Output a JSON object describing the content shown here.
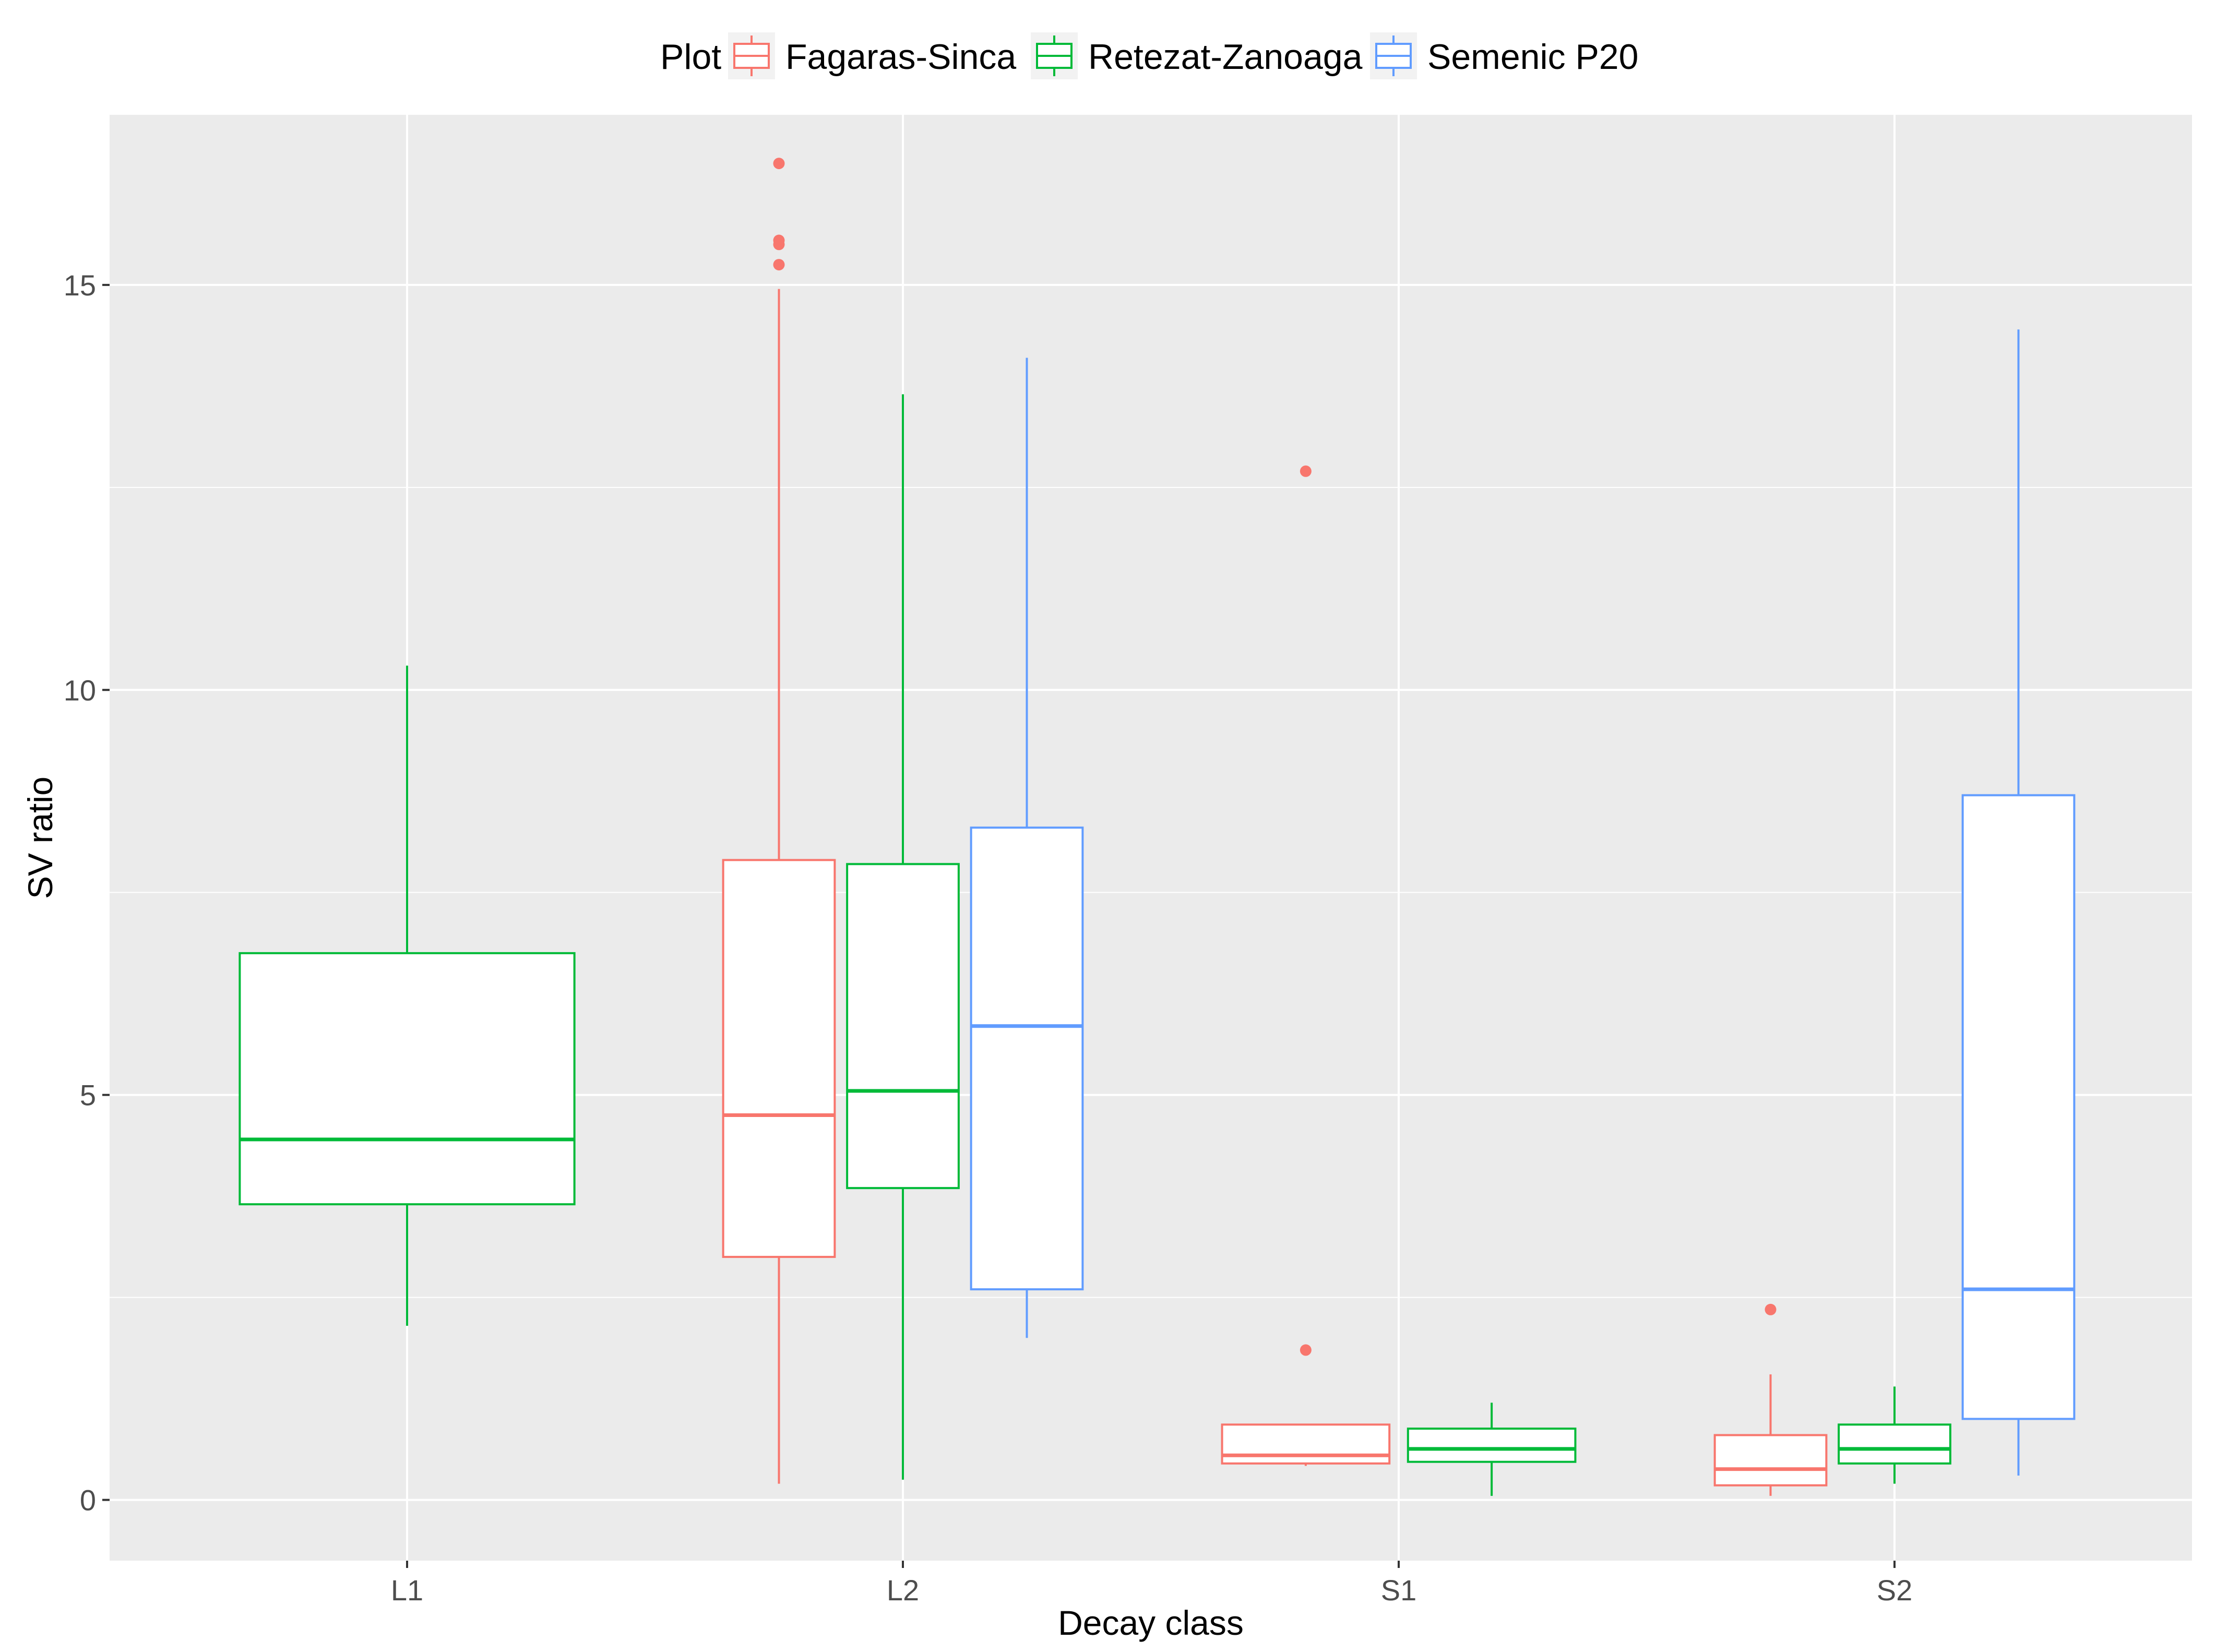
{
  "chart_data": {
    "type": "boxplot",
    "xlabel": "Decay class",
    "ylabel": "SV ratio",
    "categories": [
      "L1",
      "L2",
      "S1",
      "S2"
    ],
    "ylim": [
      -0.75,
      17.1
    ],
    "yticks": [
      0,
      5,
      10,
      15
    ],
    "grid": true,
    "legend": {
      "title": "Plot",
      "position": "top",
      "entries": [
        "Fagaras-Sinca",
        "Retezat-Zanoaga",
        "Semenic P20"
      ]
    },
    "series": [
      {
        "name": "Fagaras-Sinca",
        "color": "#F8766D",
        "boxes": [
          {
            "category": "L2",
            "min": 0.2,
            "q1": 3.0,
            "median": 4.75,
            "q3": 7.9,
            "max": 14.95,
            "outliers": [
              16.5,
              15.5,
              15.55,
              15.25
            ]
          },
          {
            "category": "S1",
            "min": 0.42,
            "q1": 0.45,
            "median": 0.55,
            "q3": 0.93,
            "max": 0.93,
            "outliers": [
              12.7,
              1.85
            ]
          },
          {
            "category": "S2",
            "min": 0.05,
            "q1": 0.18,
            "median": 0.38,
            "q3": 0.8,
            "max": 1.55,
            "outliers": [
              2.35
            ]
          }
        ]
      },
      {
        "name": "Retezat-Zanoaga",
        "color": "#00BA38",
        "boxes": [
          {
            "category": "L1",
            "min": 2.15,
            "q1": 3.65,
            "median": 4.45,
            "q3": 6.75,
            "max": 10.3,
            "outliers": []
          },
          {
            "category": "L2",
            "min": 0.25,
            "q1": 3.85,
            "median": 5.05,
            "q3": 7.85,
            "max": 13.65,
            "outliers": []
          },
          {
            "category": "S1",
            "min": 0.05,
            "q1": 0.47,
            "median": 0.63,
            "q3": 0.88,
            "max": 1.2,
            "outliers": []
          },
          {
            "category": "S2",
            "min": 0.2,
            "q1": 0.45,
            "median": 0.63,
            "q3": 0.93,
            "max": 1.4,
            "outliers": []
          }
        ]
      },
      {
        "name": "Semenic P20",
        "color": "#619CFF",
        "boxes": [
          {
            "category": "L2",
            "min": 2.0,
            "q1": 2.6,
            "median": 5.85,
            "q3": 8.3,
            "max": 14.1,
            "outliers": []
          },
          {
            "category": "S2",
            "min": 0.3,
            "q1": 1.0,
            "median": 2.6,
            "q3": 8.7,
            "max": 14.45,
            "outliers": []
          }
        ]
      }
    ]
  }
}
